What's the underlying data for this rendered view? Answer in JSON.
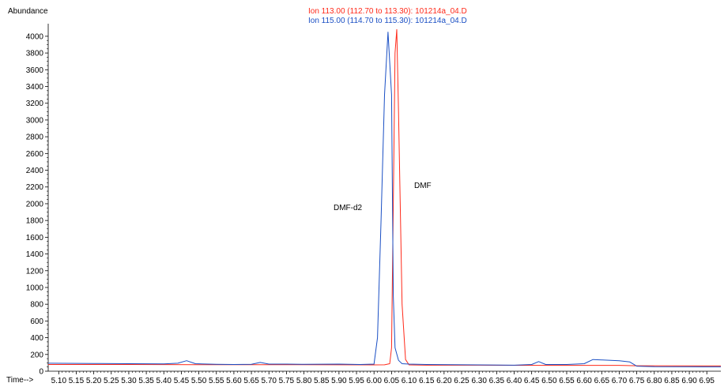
{
  "chart_data": {
    "type": "line",
    "xlabel": "Time-->",
    "ylabel": "Abundance",
    "xlim": [
      5.07,
      6.99
    ],
    "ylim": [
      0,
      4150
    ],
    "x_ticks": [
      "5.10",
      "5.15",
      "5.20",
      "5.25",
      "5.30",
      "5.35",
      "5.40",
      "5.45",
      "5.50",
      "5.55",
      "5.60",
      "5.65",
      "5.70",
      "5.75",
      "5.80",
      "5.85",
      "5.90",
      "5.95",
      "6.00",
      "6.05",
      "6.10",
      "6.15",
      "6.20",
      "6.25",
      "6.30",
      "6.35",
      "6.40",
      "6.45",
      "6.50",
      "6.55",
      "6.60",
      "6.65",
      "6.70",
      "6.75",
      "6.80",
      "6.85",
      "6.90",
      "6.95"
    ],
    "y_ticks": [
      "0",
      "200",
      "400",
      "600",
      "800",
      "1000",
      "1200",
      "1400",
      "1600",
      "1800",
      "2000",
      "2200",
      "2400",
      "2600",
      "2800",
      "3000",
      "3200",
      "3400",
      "3600",
      "3800",
      "4000"
    ],
    "grid": false,
    "legend_placement": "top-center",
    "series": [
      {
        "name": "Ion 113.00 (112.70 to 113.30): 101214a_04.D",
        "color": "#ff2a1a",
        "x": [
          5.07,
          5.3,
          5.5,
          5.7,
          5.9,
          6.0,
          6.03,
          6.045,
          6.05,
          6.055,
          6.06,
          6.065,
          6.07,
          6.08,
          6.09,
          6.1,
          6.15,
          6.3,
          6.5,
          6.7,
          6.75,
          6.99
        ],
        "y": [
          80,
          80,
          78,
          78,
          76,
          75,
          76,
          90,
          280,
          2000,
          3800,
          4080,
          3100,
          800,
          140,
          75,
          72,
          72,
          70,
          70,
          65,
          63
        ]
      },
      {
        "name": "Ion 115.00 (114.70 to 115.30): 101214a_04.D",
        "color": "#1a4fc4",
        "x": [
          5.07,
          5.2,
          5.3,
          5.4,
          5.44,
          5.465,
          5.49,
          5.55,
          5.6,
          5.65,
          5.675,
          5.7,
          5.75,
          5.8,
          5.9,
          5.96,
          6.0,
          6.01,
          6.02,
          6.03,
          6.04,
          6.05,
          6.055,
          6.06,
          6.07,
          6.08,
          6.1,
          6.15,
          6.3,
          6.4,
          6.45,
          6.47,
          6.49,
          6.55,
          6.6,
          6.625,
          6.65,
          6.7,
          6.73,
          6.75,
          6.8,
          6.9,
          6.99
        ],
        "y": [
          95,
          92,
          90,
          88,
          95,
          125,
          90,
          82,
          80,
          82,
          105,
          85,
          85,
          82,
          85,
          80,
          85,
          400,
          1800,
          3300,
          4050,
          3300,
          900,
          280,
          130,
          90,
          85,
          80,
          75,
          72,
          80,
          115,
          80,
          80,
          90,
          140,
          135,
          125,
          110,
          60,
          55,
          53,
          52
        ]
      }
    ],
    "annotations": [
      {
        "text": "DMF-d2",
        "x": 6.03,
        "y": 1930
      },
      {
        "text": "DMF",
        "x": 6.14,
        "y": 2170
      }
    ]
  }
}
